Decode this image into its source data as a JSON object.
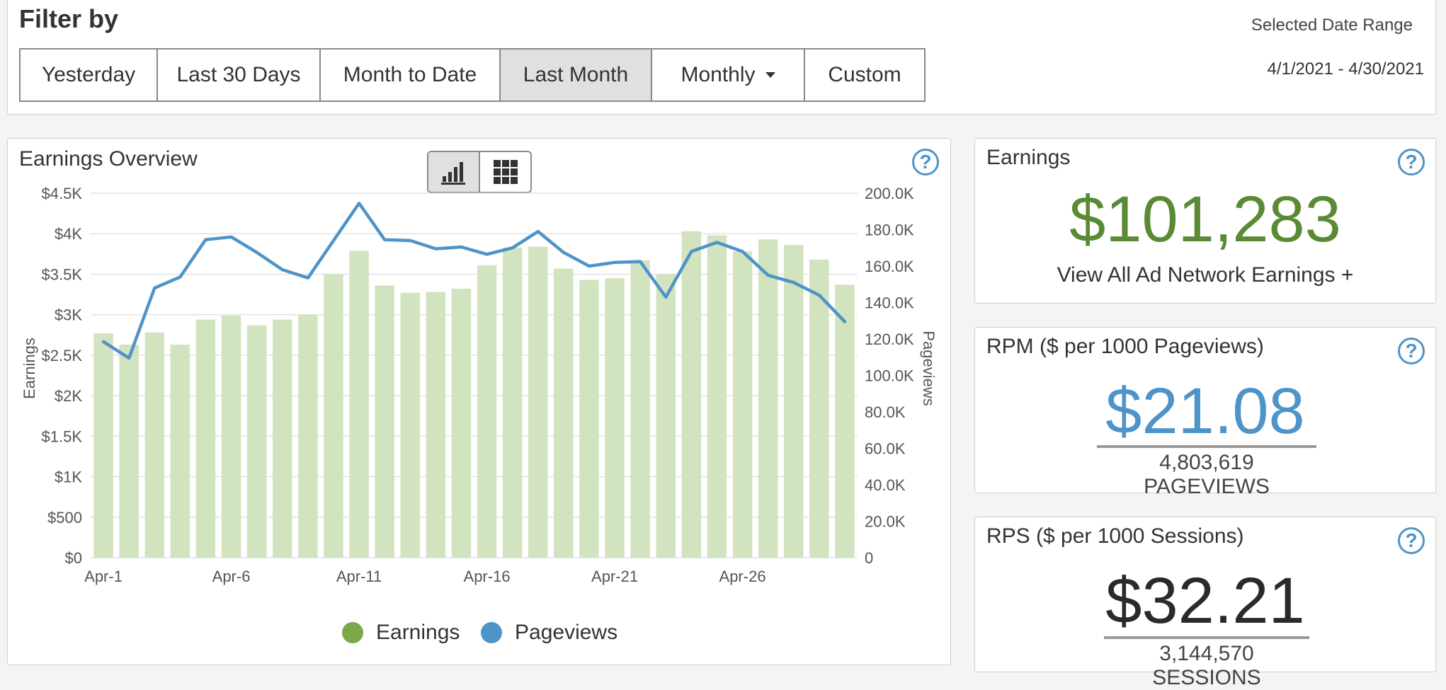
{
  "filter": {
    "title": "Filter by",
    "buttons": [
      {
        "label": "Yesterday",
        "active": false
      },
      {
        "label": "Last 30 Days",
        "active": false
      },
      {
        "label": "Month to Date",
        "active": false
      },
      {
        "label": "Last Month",
        "active": true
      },
      {
        "label": "Monthly",
        "active": false
      },
      {
        "label": "Custom",
        "active": false
      }
    ],
    "range_label": "Selected Date Range",
    "range_value": "4/1/2021 - 4/30/2021"
  },
  "overview": {
    "title": "Earnings Overview",
    "help_icon": "?",
    "toggle": [
      "bar-chart-icon",
      "grid-icon"
    ],
    "legend": [
      {
        "label": "Earnings",
        "color": "#7aa84b"
      },
      {
        "label": "Pageviews",
        "color": "#4e94c8"
      }
    ]
  },
  "chart_data": {
    "type": "bar",
    "categories": [
      "Apr-1",
      "Apr-2",
      "Apr-3",
      "Apr-4",
      "Apr-5",
      "Apr-6",
      "Apr-7",
      "Apr-8",
      "Apr-9",
      "Apr-10",
      "Apr-11",
      "Apr-12",
      "Apr-13",
      "Apr-14",
      "Apr-15",
      "Apr-16",
      "Apr-17",
      "Apr-18",
      "Apr-19",
      "Apr-20",
      "Apr-21",
      "Apr-22",
      "Apr-23",
      "Apr-24",
      "Apr-25",
      "Apr-26",
      "Apr-27",
      "Apr-28",
      "Apr-29",
      "Apr-30"
    ],
    "x_tick_labels": [
      "Apr-1",
      "Apr-6",
      "Apr-11",
      "Apr-16",
      "Apr-21",
      "Apr-26"
    ],
    "series": [
      {
        "name": "Earnings",
        "axis": "left",
        "type": "bar",
        "color": "#d2e3bf",
        "values": [
          2770,
          2630,
          2780,
          2630,
          2940,
          2990,
          2870,
          2940,
          3000,
          3500,
          3790,
          3360,
          3270,
          3280,
          3320,
          3610,
          3830,
          3840,
          3570,
          3430,
          3450,
          3670,
          3500,
          4030,
          3980,
          3780,
          3930,
          3860,
          3680,
          3370
        ]
      },
      {
        "name": "Pageviews",
        "axis": "right",
        "type": "line",
        "color": "#4e94c8",
        "values": [
          118500,
          109500,
          148000,
          154000,
          174500,
          176000,
          167500,
          158000,
          153500,
          174000,
          194500,
          174500,
          174000,
          169500,
          170500,
          166500,
          170000,
          179000,
          167500,
          160000,
          162000,
          162500,
          143000,
          168000,
          173000,
          168000,
          155000,
          151000,
          144000,
          129500
        ]
      }
    ],
    "ylabel": "Earnings",
    "ylabel_right": "Pageviews",
    "ylim": [
      0,
      4500
    ],
    "ylim_right": [
      0,
      200000
    ],
    "y_ticks": [
      "$0",
      "$500",
      "$1K",
      "$1.5K",
      "$2K",
      "$2.5K",
      "$3K",
      "$3.5K",
      "$4K",
      "$4.5K"
    ],
    "y_right_ticks": [
      "0",
      "20.0K",
      "40.0K",
      "60.0K",
      "80.0K",
      "100.0K",
      "120.0K",
      "140.0K",
      "160.0K",
      "180.0K",
      "200.0K"
    ],
    "grid": true
  },
  "earnings": {
    "label": "Earnings",
    "value": "$101,283",
    "link": "View All Ad Network Earnings +",
    "color": "#5b8a35"
  },
  "rpm": {
    "label": "RPM ($ per 1000 Pageviews)",
    "value": "$21.08",
    "sub": "4,803,619 PAGEVIEWS",
    "color": "#4e94c8"
  },
  "rps": {
    "label": "RPS ($ per 1000 Sessions)",
    "value": "$32.21",
    "sub": "3,144,570 SESSIONS",
    "color": "#2a2a2a"
  }
}
